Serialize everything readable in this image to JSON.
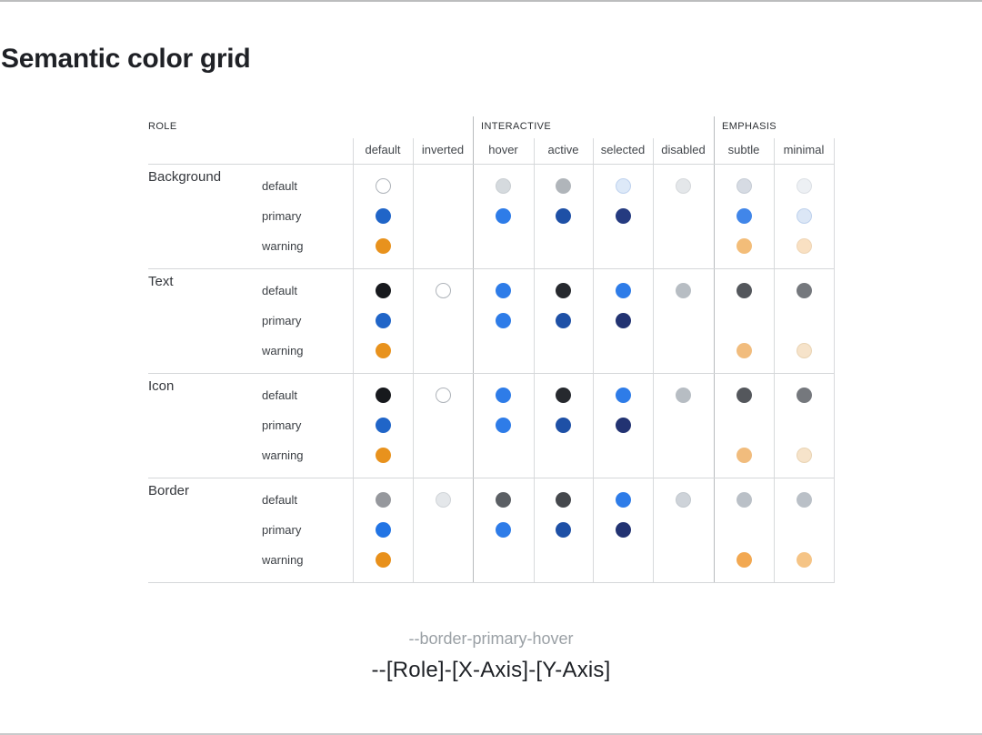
{
  "page": {
    "title": "Semantic color grid",
    "caption_example": "--border-primary-hover",
    "caption_formula": "--[Role]-[X-Axis]-[Y-Axis]"
  },
  "grid": {
    "role_header": "ROLE",
    "groups": [
      {
        "label": "INTERACTIVE",
        "columns": [
          "hover",
          "active",
          "selected",
          "disabled"
        ]
      },
      {
        "label": "EMPHASIS",
        "columns": [
          "subtle",
          "minimal"
        ]
      }
    ],
    "columns": [
      "default",
      "inverted",
      "hover",
      "active",
      "selected",
      "disabled",
      "subtle",
      "minimal"
    ],
    "rows": [
      {
        "role": "Background",
        "variants": [
          {
            "name": "default",
            "cells": {
              "default": {
                "fill": "#ffffff",
                "stroke": "#aeb3b9"
              },
              "hover": {
                "fill": "#d5dade",
                "stroke": "#c9ced2"
              },
              "active": {
                "fill": "#b0b5ba"
              },
              "selected": {
                "fill": "#dde9f8",
                "stroke": "#bed2ee"
              },
              "disabled": {
                "fill": "#e4e7ea",
                "stroke": "#d5d8db"
              },
              "subtle": {
                "fill": "#d6dbe3",
                "stroke": "#c6ccd5"
              },
              "minimal": {
                "fill": "#edf0f4",
                "stroke": "#dce0e5"
              }
            }
          },
          {
            "name": "primary",
            "cells": {
              "default": {
                "fill": "#2065c8"
              },
              "hover": {
                "fill": "#2e7ce8"
              },
              "active": {
                "fill": "#1e50a6"
              },
              "selected": {
                "fill": "#253b80"
              },
              "subtle": {
                "fill": "#4186e9"
              },
              "minimal": {
                "fill": "#dce7f6",
                "stroke": "#bed1ec"
              }
            }
          },
          {
            "name": "warning",
            "cells": {
              "default": {
                "fill": "#e8921d"
              },
              "subtle": {
                "fill": "#f3bd79"
              },
              "minimal": {
                "fill": "#f9e0c2",
                "stroke": "#eed5b6"
              }
            }
          }
        ]
      },
      {
        "role": "Text",
        "variants": [
          {
            "name": "default",
            "cells": {
              "default": {
                "fill": "#17191d"
              },
              "inverted": {
                "fill": "#ffffff",
                "stroke": "#aeb3b9"
              },
              "hover": {
                "fill": "#2e7ce8"
              },
              "active": {
                "fill": "#26292e"
              },
              "selected": {
                "fill": "#2e7ce8"
              },
              "disabled": {
                "fill": "#b7bdc3"
              },
              "subtle": {
                "fill": "#54575c"
              },
              "minimal": {
                "fill": "#75787d"
              }
            }
          },
          {
            "name": "primary",
            "cells": {
              "default": {
                "fill": "#2065c8"
              },
              "hover": {
                "fill": "#2e7ce8"
              },
              "active": {
                "fill": "#1e50a6"
              },
              "selected": {
                "fill": "#223372"
              }
            }
          },
          {
            "name": "warning",
            "cells": {
              "default": {
                "fill": "#e8921d"
              },
              "subtle": {
                "fill": "#f1bc7d"
              },
              "minimal": {
                "fill": "#f6e3ca",
                "stroke": "#e9d3b3"
              }
            }
          }
        ]
      },
      {
        "role": "Icon",
        "variants": [
          {
            "name": "default",
            "cells": {
              "default": {
                "fill": "#17191d"
              },
              "inverted": {
                "fill": "#ffffff",
                "stroke": "#aeb3b9"
              },
              "hover": {
                "fill": "#2e7ce8"
              },
              "active": {
                "fill": "#26292e"
              },
              "selected": {
                "fill": "#2e7ce8"
              },
              "disabled": {
                "fill": "#b7bdc3"
              },
              "subtle": {
                "fill": "#54575c"
              },
              "minimal": {
                "fill": "#75787d"
              }
            }
          },
          {
            "name": "primary",
            "cells": {
              "default": {
                "fill": "#2065c8"
              },
              "hover": {
                "fill": "#2e7ce8"
              },
              "active": {
                "fill": "#1e50a6"
              },
              "selected": {
                "fill": "#223372"
              }
            }
          },
          {
            "name": "warning",
            "cells": {
              "default": {
                "fill": "#e8921d"
              },
              "subtle": {
                "fill": "#f1bc7d"
              },
              "minimal": {
                "fill": "#f6e3ca",
                "stroke": "#e9d3b3"
              }
            }
          }
        ]
      },
      {
        "role": "Border",
        "variants": [
          {
            "name": "default",
            "cells": {
              "default": {
                "fill": "#96989d"
              },
              "inverted": {
                "fill": "#e4e7ea",
                "stroke": "#d0d4d8"
              },
              "hover": {
                "fill": "#5b5f64"
              },
              "active": {
                "fill": "#45484d"
              },
              "selected": {
                "fill": "#2e7ce8"
              },
              "disabled": {
                "fill": "#ced3d9",
                "stroke": "#c2c8ce"
              },
              "subtle": {
                "fill": "#bac0c7"
              },
              "minimal": {
                "fill": "#bac0c7"
              }
            }
          },
          {
            "name": "primary",
            "cells": {
              "default": {
                "fill": "#2274e4"
              },
              "hover": {
                "fill": "#2e7ce8"
              },
              "active": {
                "fill": "#1e50a6"
              },
              "selected": {
                "fill": "#223372"
              }
            }
          },
          {
            "name": "warning",
            "cells": {
              "default": {
                "fill": "#e8901b"
              },
              "subtle": {
                "fill": "#f2a851"
              },
              "minimal": {
                "fill": "#f5c486"
              }
            }
          }
        ]
      }
    ]
  }
}
